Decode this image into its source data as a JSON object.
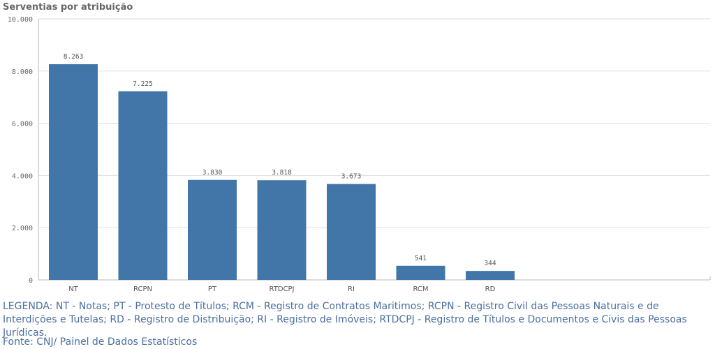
{
  "chart_data": {
    "type": "bar",
    "title": "Serventias por atribuição",
    "categories": [
      "NT",
      "RCPN",
      "PT",
      "RTDCPJ",
      "RI",
      "RCM",
      "RD"
    ],
    "values": [
      8263,
      7225,
      3830,
      3818,
      3673,
      541,
      344
    ],
    "value_labels": [
      "8.263",
      "7.225",
      "3.830",
      "3.818",
      "3.673",
      "541",
      "344"
    ],
    "y_ticks": [
      "0",
      "2.000",
      "4.000",
      "6.000",
      "8.000",
      "10.000"
    ],
    "y_tick_values": [
      0,
      2000,
      4000,
      6000,
      8000,
      10000
    ],
    "ylim": [
      0,
      10000
    ],
    "grid": true,
    "bar_color": "#4276a8"
  },
  "legend": "LEGENDA: NT - Notas; PT - Protesto de Títulos; RCM - Registro de Contratos Maritimos; RCPN - Registro Civil das Pessoas Naturais e de Interdições e Tutelas; RD - Registro de Distribuição; RI - Registro de Imóveis; RTDCPJ - Registro de Títulos e Documentos e Civis das Pessoas Jurídicas.",
  "source": "Fonte: CNJ/ Painel de Dados Estatísticos"
}
